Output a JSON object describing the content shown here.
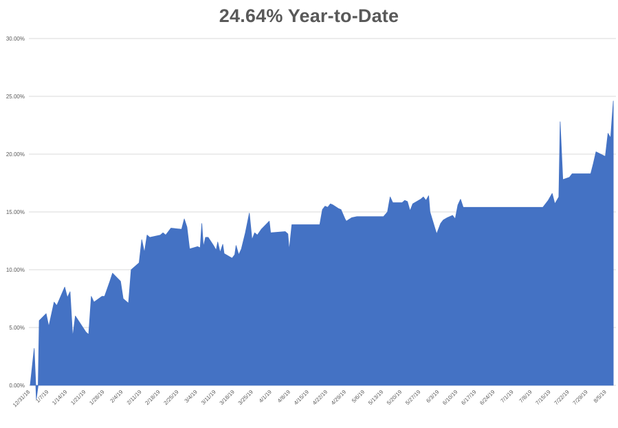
{
  "chart_data": {
    "type": "area",
    "title": "24.64% Year-to-Date",
    "xlabel": "",
    "ylabel": "",
    "ylim": [
      -0.015,
      0.3
    ],
    "grid": true,
    "legend": "none",
    "colors": {
      "fill": "#4472C4",
      "grid": "#D9D9D9",
      "text": "#595959"
    },
    "y_ticks": [
      {
        "value": 0.0,
        "label": "0.00%"
      },
      {
        "value": 0.05,
        "label": "5.00%"
      },
      {
        "value": 0.1,
        "label": "10.00%"
      },
      {
        "value": 0.15,
        "label": "15.00%"
      },
      {
        "value": 0.2,
        "label": "20.00%"
      },
      {
        "value": 0.25,
        "label": "25.00%"
      },
      {
        "value": 0.3,
        "label": "30.00%"
      }
    ],
    "x_ticks": [
      {
        "day": 0,
        "label": "12/31/18"
      },
      {
        "day": 7,
        "label": "1/7/19"
      },
      {
        "day": 14,
        "label": "1/14/19"
      },
      {
        "day": 21,
        "label": "1/21/19"
      },
      {
        "day": 28,
        "label": "1/28/19"
      },
      {
        "day": 35,
        "label": "2/4/19"
      },
      {
        "day": 42,
        "label": "2/11/19"
      },
      {
        "day": 49,
        "label": "2/18/19"
      },
      {
        "day": 56,
        "label": "2/25/19"
      },
      {
        "day": 63,
        "label": "3/4/19"
      },
      {
        "day": 70,
        "label": "3/11/19"
      },
      {
        "day": 77,
        "label": "3/18/19"
      },
      {
        "day": 84,
        "label": "3/25/19"
      },
      {
        "day": 91,
        "label": "4/1/19"
      },
      {
        "day": 98,
        "label": "4/8/19"
      },
      {
        "day": 105,
        "label": "4/15/19"
      },
      {
        "day": 112,
        "label": "4/22/19"
      },
      {
        "day": 119,
        "label": "4/29/19"
      },
      {
        "day": 126,
        "label": "5/6/19"
      },
      {
        "day": 133,
        "label": "5/13/19"
      },
      {
        "day": 140,
        "label": "5/20/19"
      },
      {
        "day": 147,
        "label": "5/27/19"
      },
      {
        "day": 154,
        "label": "6/3/19"
      },
      {
        "day": 161,
        "label": "6/10/19"
      },
      {
        "day": 168,
        "label": "6/17/19"
      },
      {
        "day": 175,
        "label": "6/24/19"
      },
      {
        "day": 182,
        "label": "7/1/19"
      },
      {
        "day": 189,
        "label": "7/8/19"
      },
      {
        "day": 196,
        "label": "7/15/19"
      },
      {
        "day": 203,
        "label": "7/22/19"
      },
      {
        "day": 210,
        "label": "7/29/19"
      },
      {
        "day": 217,
        "label": "8/5/19"
      }
    ],
    "x_range_days": [
      -0.5,
      220.5
    ],
    "series": [
      {
        "name": "",
        "points": [
          [
            0.0,
            0.0
          ],
          [
            1.5,
            0.032
          ],
          [
            2.1,
            0.0
          ],
          [
            2.3,
            -0.012
          ],
          [
            3.0,
            0.0
          ],
          [
            3.4,
            0.056
          ],
          [
            6.0,
            0.062
          ],
          [
            7.0,
            0.051
          ],
          [
            9.0,
            0.072
          ],
          [
            10.0,
            0.069
          ],
          [
            13.0,
            0.085
          ],
          [
            14.0,
            0.076
          ],
          [
            15.0,
            0.081
          ],
          [
            16.0,
            0.042
          ],
          [
            17.0,
            0.06
          ],
          [
            21.0,
            0.046
          ],
          [
            22.0,
            0.044
          ],
          [
            23.0,
            0.077
          ],
          [
            24.0,
            0.072
          ],
          [
            27.0,
            0.077
          ],
          [
            28.0,
            0.077
          ],
          [
            30.0,
            0.09
          ],
          [
            31.0,
            0.097
          ],
          [
            34.0,
            0.09
          ],
          [
            35.0,
            0.075
          ],
          [
            37.0,
            0.071
          ],
          [
            38.0,
            0.1
          ],
          [
            41.0,
            0.106
          ],
          [
            42.0,
            0.126
          ],
          [
            43.0,
            0.115
          ],
          [
            44.0,
            0.13
          ],
          [
            45.0,
            0.128
          ],
          [
            49.0,
            0.13
          ],
          [
            50.0,
            0.132
          ],
          [
            51.0,
            0.13
          ],
          [
            53.0,
            0.136
          ],
          [
            57.0,
            0.135
          ],
          [
            58.0,
            0.144
          ],
          [
            59.0,
            0.137
          ],
          [
            60.0,
            0.118
          ],
          [
            63.0,
            0.12
          ],
          [
            64.0,
            0.119
          ],
          [
            64.6,
            0.14
          ],
          [
            65.2,
            0.12
          ],
          [
            66.0,
            0.128
          ],
          [
            67.0,
            0.128
          ],
          [
            69.0,
            0.121
          ],
          [
            70.0,
            0.117
          ],
          [
            70.6,
            0.124
          ],
          [
            71.5,
            0.115
          ],
          [
            72.5,
            0.122
          ],
          [
            73.0,
            0.114
          ],
          [
            76.0,
            0.11
          ],
          [
            77.0,
            0.113
          ],
          [
            77.5,
            0.121
          ],
          [
            78.5,
            0.113
          ],
          [
            79.5,
            0.118
          ],
          [
            81.0,
            0.132
          ],
          [
            82.5,
            0.149
          ],
          [
            83.5,
            0.126
          ],
          [
            84.5,
            0.132
          ],
          [
            85.5,
            0.13
          ],
          [
            87.0,
            0.135
          ],
          [
            90.0,
            0.142
          ],
          [
            90.5,
            0.132
          ],
          [
            96.0,
            0.133
          ],
          [
            97.0,
            0.131
          ],
          [
            97.5,
            0.117
          ],
          [
            98.5,
            0.139
          ],
          [
            101.0,
            0.139
          ],
          [
            107.0,
            0.139
          ],
          [
            109.0,
            0.139
          ],
          [
            110.0,
            0.152
          ],
          [
            111.0,
            0.155
          ],
          [
            112.0,
            0.154
          ],
          [
            113.0,
            0.157
          ],
          [
            114.0,
            0.156
          ],
          [
            116.0,
            0.153
          ],
          [
            117.0,
            0.152
          ],
          [
            118.5,
            0.144
          ],
          [
            119.0,
            0.142
          ],
          [
            121.0,
            0.145
          ],
          [
            123.0,
            0.146
          ],
          [
            133.0,
            0.146
          ],
          [
            134.5,
            0.15
          ],
          [
            135.5,
            0.163
          ],
          [
            136.5,
            0.158
          ],
          [
            140.0,
            0.158
          ],
          [
            141.0,
            0.16
          ],
          [
            142.0,
            0.159
          ],
          [
            143.0,
            0.151
          ],
          [
            144.0,
            0.157
          ],
          [
            147.0,
            0.161
          ],
          [
            148.0,
            0.163
          ],
          [
            149.0,
            0.16
          ],
          [
            150.0,
            0.164
          ],
          [
            150.5,
            0.15
          ],
          [
            153.0,
            0.131
          ],
          [
            154.5,
            0.14
          ],
          [
            155.5,
            0.143
          ],
          [
            157.0,
            0.145
          ],
          [
            159.0,
            0.147
          ],
          [
            160.0,
            0.144
          ],
          [
            161.0,
            0.156
          ],
          [
            162.0,
            0.161
          ],
          [
            163.0,
            0.154
          ],
          [
            193.0,
            0.154
          ],
          [
            195.0,
            0.16
          ],
          [
            196.5,
            0.166
          ],
          [
            197.5,
            0.157
          ],
          [
            199.0,
            0.163
          ],
          [
            199.5,
            0.228
          ],
          [
            200.5,
            0.178
          ],
          [
            203.0,
            0.18
          ],
          [
            204.0,
            0.183
          ],
          [
            211.0,
            0.183
          ],
          [
            212.0,
            0.192
          ],
          [
            213.0,
            0.202
          ],
          [
            216.5,
            0.198
          ],
          [
            217.5,
            0.218
          ],
          [
            218.5,
            0.214
          ],
          [
            219.5,
            0.246
          ]
        ]
      }
    ]
  }
}
